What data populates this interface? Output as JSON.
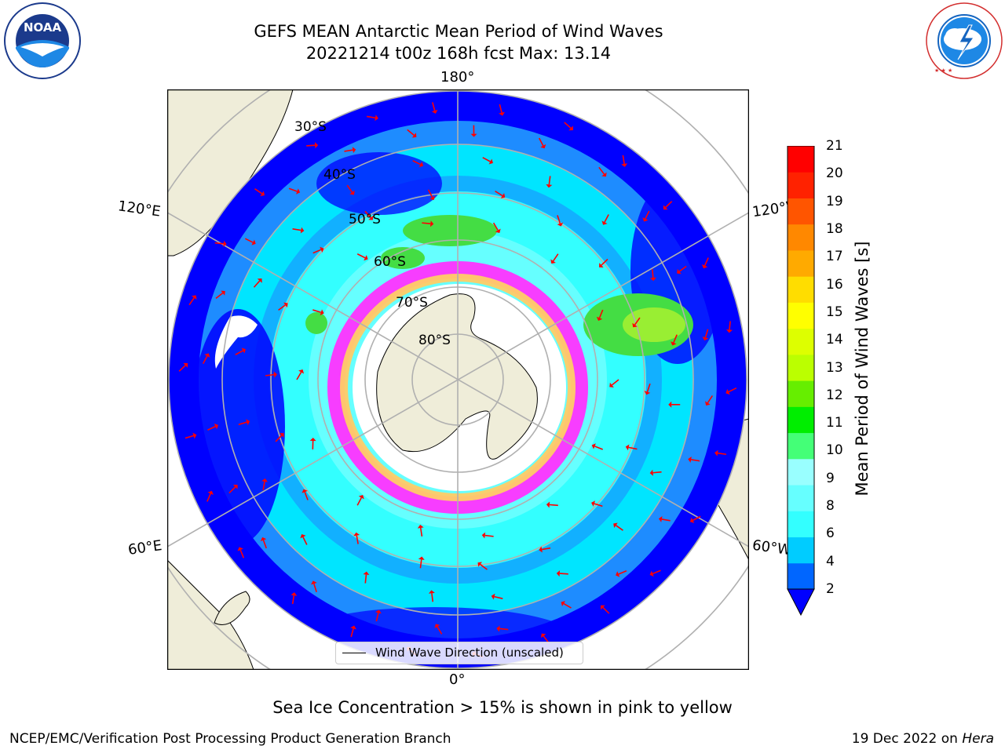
{
  "title": {
    "line1": "GEFS MEAN Antarctic Mean Period of Wind Waves",
    "line2": "20221214 t00z 168h fcst   Max: 13.14"
  },
  "logos": {
    "noaa": {
      "text": "NOAA",
      "ring_text": "NATIONAL OCEANIC AND ATMOSPHERIC ADMINISTRATION · U.S. DEPARTMENT OF COMMERCE"
    },
    "nws": {
      "ring_text": "NATIONAL WEATHER SERVICE"
    }
  },
  "map": {
    "projection": "south-polar-stereographic",
    "lon_labels": {
      "top": "180°",
      "bottom": "0°",
      "upper_left": "120°E",
      "lower_left": "60°E",
      "upper_right": "120°W",
      "lower_right": "60°W"
    },
    "lat_labels": [
      "30°S",
      "40°S",
      "50°S",
      "60°S",
      "70°S",
      "80°S"
    ],
    "legend": {
      "label": "Wind Wave Direction (unscaled)"
    },
    "colors": {
      "land": "#efedd9",
      "ocean_deep": "#0000ff",
      "ocean_mid": "#1e8cff",
      "ocean_light": "#00e5ff",
      "green": "#33d633",
      "ice_pink": "#ff33ff",
      "ice_yellow": "#ffcc66",
      "arrow": "#ff0000",
      "grid": "#b0b0b0"
    }
  },
  "colorbar": {
    "label": "Mean Period of Wind Waves [s]",
    "ticks": [
      "21",
      "20",
      "19",
      "18",
      "17",
      "16",
      "15",
      "14",
      "13",
      "12",
      "11",
      "10",
      "9",
      "8",
      "6",
      "4",
      "2"
    ],
    "colors_bottom_to_top": [
      "#0066ff",
      "#00ccff",
      "#33ffff",
      "#66ffff",
      "#99ffff",
      "#44ff77",
      "#00ee00",
      "#66ee00",
      "#bbff00",
      "#ddff00",
      "#ffff00",
      "#ffdd00",
      "#ffaa00",
      "#ff8800",
      "#ff5500",
      "#ff2200",
      "#ff0000"
    ],
    "under_color": "#0000ff"
  },
  "caption": "Sea Ice Concentration > 15% is shown in pink to yellow",
  "footer": {
    "left": "NCEP/EMC/Verification Post Processing Product Generation Branch",
    "right_prefix": "19 Dec 2022 on ",
    "right_emph": "Hera"
  }
}
